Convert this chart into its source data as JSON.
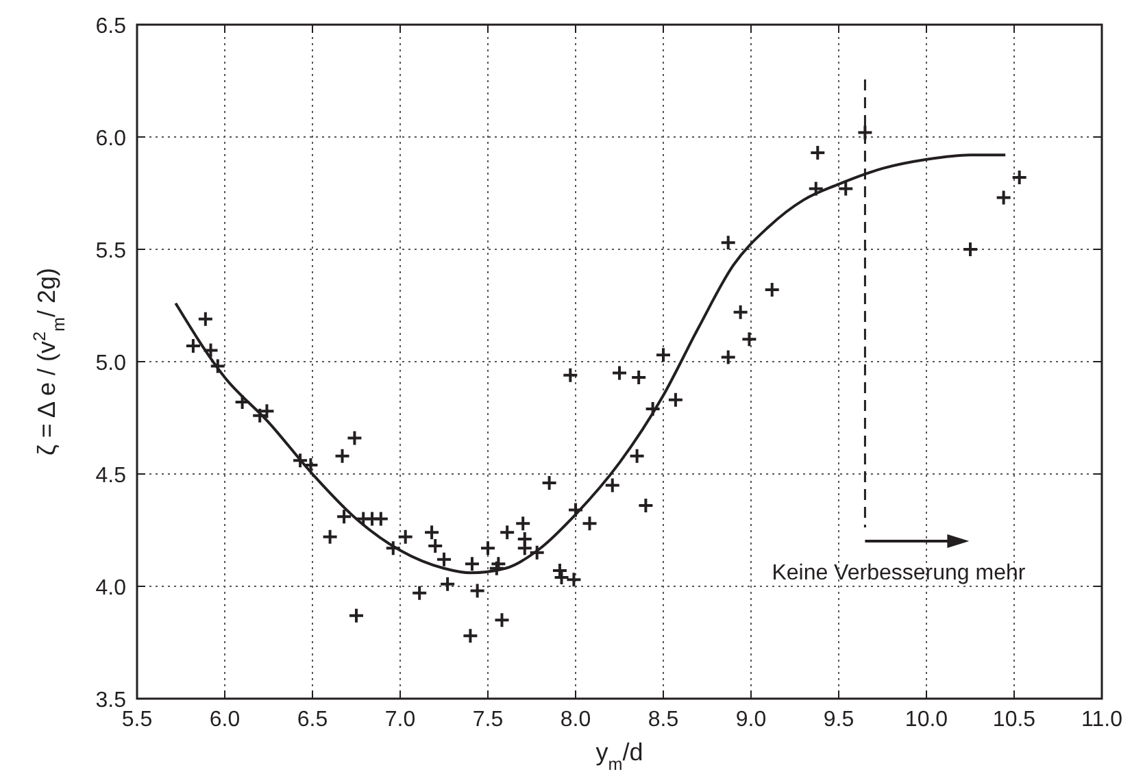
{
  "chart_data": {
    "type": "scatter",
    "xlabel": "y$_{m}$/d",
    "ylabel": "ζ = Δ e / (v$^{2}$$_{m}$/ 2g)",
    "xlim": [
      5.5,
      11.0
    ],
    "xticks": [
      {
        "value": 5.5,
        "label": "5.5"
      },
      {
        "value": 6,
        "label": "6.0"
      },
      {
        "value": 6.5,
        "label": "6.5"
      },
      {
        "value": 7,
        "label": "7.0"
      },
      {
        "value": 7.5,
        "label": "7.5"
      },
      {
        "value": 8,
        "label": "8.0"
      },
      {
        "value": 8.5,
        "label": "8.5"
      },
      {
        "value": 9,
        "label": "9.0"
      },
      {
        "value": 9.5,
        "label": "9.5"
      },
      {
        "value": 10,
        "label": "10.0"
      },
      {
        "value": 10.5,
        "label": "10.5"
      },
      {
        "value": 11,
        "label": "11.0"
      }
    ],
    "ylim": [
      3.5,
      6.5
    ],
    "yticks": [
      {
        "value": 3.5,
        "label": "3.5"
      },
      {
        "value": 4,
        "label": "4.0"
      },
      {
        "value": 4.5,
        "label": "4.5"
      },
      {
        "value": 5,
        "label": "5.0"
      },
      {
        "value": 5.5,
        "label": "5.5"
      },
      {
        "value": 6,
        "label": "6.0"
      },
      {
        "value": 6.5,
        "label": "6.5"
      }
    ],
    "grid": true,
    "series": [
      {
        "color": "#231f20",
        "marker": "cross",
        "x": [
          5.82,
          5.89,
          5.92,
          5.96,
          6.1,
          6.2,
          6.24,
          6.43,
          6.49,
          6.6,
          6.67,
          6.68,
          6.74,
          6.75,
          6.79,
          6.84,
          6.89,
          6.96,
          7.03,
          7.11,
          7.18,
          7.2,
          7.25,
          7.27,
          7.4,
          7.41,
          7.44,
          7.5,
          7.55,
          7.56,
          7.58,
          7.61,
          7.7,
          7.71,
          7.71,
          7.78,
          7.85,
          7.91,
          7.92,
          7.97,
          8.0,
          7.99,
          8.08,
          8.21,
          8.25,
          8.35,
          8.36,
          8.4,
          8.44,
          8.5,
          8.57,
          8.87,
          8.87,
          8.94,
          8.99,
          9.12,
          9.37,
          9.38,
          9.54,
          9.65,
          10.25,
          10.44,
          10.53
        ],
        "values": [
          5.07,
          5.19,
          5.05,
          4.98,
          4.82,
          4.76,
          4.78,
          4.56,
          4.54,
          4.22,
          4.58,
          4.31,
          4.66,
          3.87,
          4.3,
          4.3,
          4.3,
          4.17,
          4.22,
          3.97,
          4.24,
          4.18,
          4.12,
          4.01,
          3.78,
          4.1,
          3.98,
          4.17,
          4.08,
          4.1,
          3.85,
          4.24,
          4.28,
          4.21,
          4.17,
          4.15,
          4.46,
          4.07,
          4.04,
          4.94,
          4.34,
          4.03,
          4.28,
          4.45,
          4.95,
          4.58,
          4.93,
          4.36,
          4.79,
          5.03,
          4.83,
          5.53,
          5.02,
          5.22,
          5.1,
          5.32,
          5.77,
          5.93,
          5.77,
          6.02,
          5.5,
          5.73,
          5.82
        ]
      },
      {
        "type": "line",
        "color": "#231f20",
        "marker": "none",
        "line_style": "solid",
        "x": [
          5.72,
          6.0,
          6.25,
          6.5,
          6.75,
          7.0,
          7.25,
          7.4,
          7.6,
          7.8,
          8.0,
          8.25,
          8.5,
          8.7,
          8.9,
          9.1,
          9.3,
          9.5,
          9.75,
          10.0,
          10.25,
          10.45
        ],
        "values": [
          5.26,
          4.93,
          4.73,
          4.5,
          4.3,
          4.16,
          4.08,
          4.06,
          4.08,
          4.17,
          4.32,
          4.55,
          4.85,
          5.15,
          5.43,
          5.6,
          5.72,
          5.79,
          5.86,
          5.9,
          5.92,
          5.92
        ]
      }
    ],
    "ref_lines": [
      {
        "axis": "x",
        "value": 9.65,
        "line_style": "dashed",
        "color": "#231f20"
      }
    ],
    "annotations": [
      "Keine Verbesserung mehr"
    ]
  }
}
